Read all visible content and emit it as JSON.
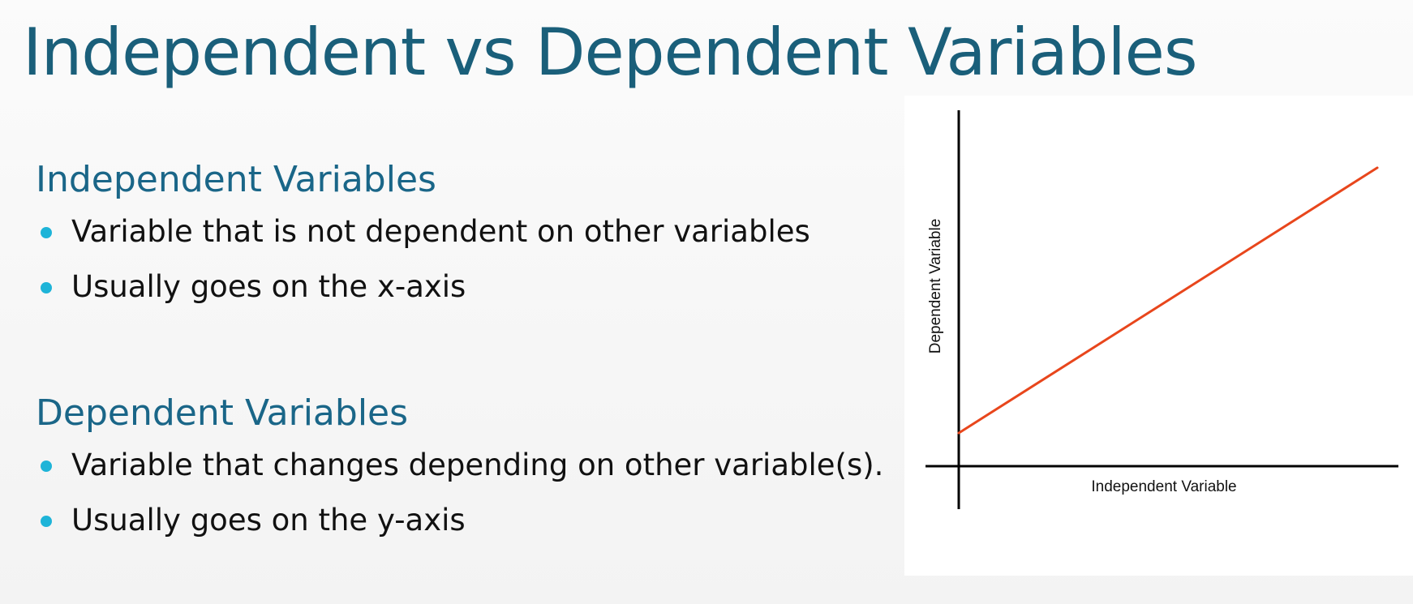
{
  "slide": {
    "title": "Independent vs Dependent Variables",
    "sections": [
      {
        "heading": "Independent Variables",
        "bullets": [
          "Variable that is not dependent on other variables",
          "Usually goes on the x-axis"
        ]
      },
      {
        "heading": "Dependent Variables",
        "bullets": [
          "Variable that changes depending on other variable(s).",
          "Usually goes on the y-axis"
        ]
      }
    ],
    "colors": {
      "title": "#1a5f7a",
      "heading": "#1a6688",
      "bullet_dot": "#1eb4d8",
      "line": "#e8461c",
      "axis": "#000000"
    }
  },
  "chart_data": {
    "type": "line",
    "xlabel": "Independent Variable",
    "ylabel": "Dependent Variable",
    "title": "",
    "series": [
      {
        "x": [
          0,
          1
        ],
        "y": [
          0.1,
          0.9
        ]
      }
    ],
    "xlim": [
      0,
      1
    ],
    "ylim": [
      0,
      1
    ],
    "grid": false,
    "legend": "none",
    "tick_labels": false
  }
}
